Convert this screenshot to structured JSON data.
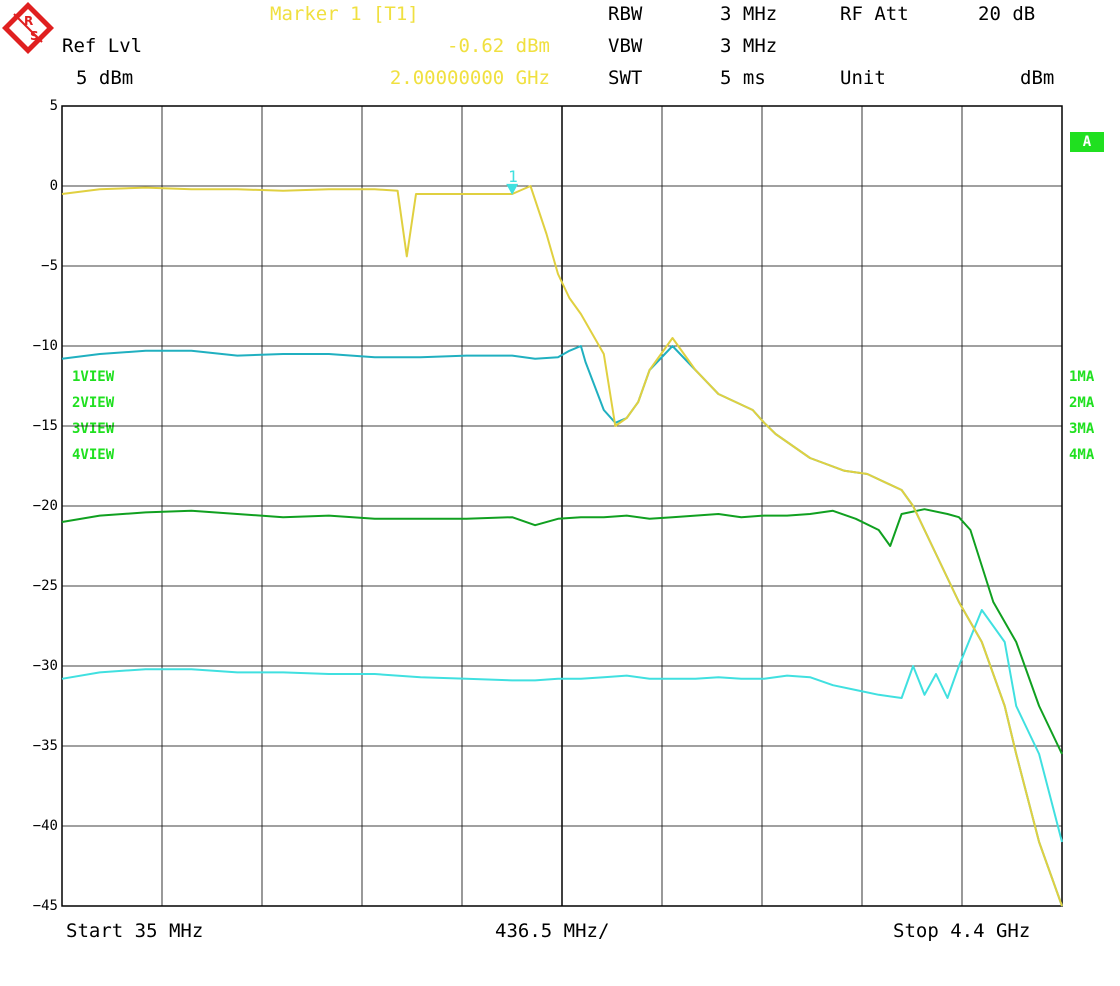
{
  "header": {
    "marker_title": "Marker 1 [T1]",
    "marker_level": "-0.62 dBm",
    "marker_freq": "2.00000000 GHz",
    "ref_lvl_label": "Ref Lvl",
    "ref_lvl_value": "5 dBm",
    "rbw_label": "RBW",
    "rbw_value": "3 MHz",
    "vbw_label": "VBW",
    "vbw_value": "3 MHz",
    "swt_label": "SWT",
    "swt_value": "5 ms",
    "rfatt_label": "RF Att",
    "rfatt_value": "20 dB",
    "unit_label": "Unit",
    "unit_value": "dBm"
  },
  "footer": {
    "start": "Start 35 MHz",
    "span": "436.5 MHz/",
    "stop": "Stop 4.4 GHz"
  },
  "side": {
    "a_box": "A",
    "views": [
      "1VIEW",
      "2VIEW",
      "3VIEW",
      "4VIEW"
    ],
    "ma": [
      "1MA",
      "2MA",
      "3MA",
      "4MA"
    ]
  },
  "colors": {
    "trace1": "#e0d040",
    "trace2": "#20b0c0",
    "trace3": "#10a020",
    "trace4": "#40e0e0",
    "marker": "#40e0e0",
    "grid": "#000000"
  },
  "chart_data": {
    "type": "line",
    "xlim": [
      35,
      4400
    ],
    "x_unit": "MHz",
    "ylim": [
      -45,
      5
    ],
    "ylabel": "",
    "xlabel": "",
    "y_ticks": [
      5,
      0,
      -5,
      -10,
      -15,
      -20,
      -25,
      -30,
      -35,
      -40,
      -45
    ],
    "y_tick_labels": [
      "5",
      "0",
      "−5",
      "−10",
      "−15",
      "−20",
      "−25",
      "−30",
      "−35",
      "−40",
      "−45"
    ],
    "grid": true,
    "marker": {
      "label": "1",
      "x": 2000,
      "y": -0.62
    },
    "series": [
      {
        "x": [
          35,
          200,
          400,
          600,
          800,
          1000,
          1200,
          1400,
          1500,
          1540,
          1580,
          1650,
          1800,
          1950,
          2000,
          2080,
          2150,
          2200,
          2250,
          2300,
          2320,
          2400,
          2450,
          2500,
          2550,
          2600,
          2700,
          2800,
          2900,
          3050,
          3100,
          3150,
          3200,
          3300,
          3450,
          3550,
          3700,
          3750,
          3850,
          3950,
          4050,
          4150,
          4200,
          4300,
          4400
        ],
        "values": [
          -0.5,
          -0.2,
          -0.1,
          -0.2,
          -0.2,
          -0.3,
          -0.2,
          -0.2,
          -0.3,
          -4.4,
          -0.5,
          -0.5,
          -0.5,
          -0.5,
          -0.5,
          0,
          -3,
          -5.5,
          -7,
          -8,
          -8.5,
          -10.5,
          -15,
          -14.5,
          -13.5,
          -11.5,
          -9.5,
          -11.5,
          -13,
          -14,
          -14.8,
          -15.5,
          -16,
          -17,
          -17.8,
          -18,
          -19,
          -20,
          -23,
          -26,
          -28.5,
          -32.5,
          -35.5,
          -41,
          -45
        ]
      },
      {
        "x": [
          35,
          200,
          400,
          600,
          800,
          1000,
          1200,
          1400,
          1600,
          1800,
          2000,
          2100,
          2200,
          2250,
          2300,
          2320,
          2400,
          2450,
          2500,
          2550,
          2600,
          2700,
          2800,
          2900,
          3050,
          3100,
          3150,
          3200,
          3300,
          3450,
          3550,
          3700,
          3750,
          3850,
          3950,
          4050,
          4150,
          4200,
          4300,
          4400
        ],
        "values": [
          -10.8,
          -10.5,
          -10.3,
          -10.3,
          -10.6,
          -10.5,
          -10.5,
          -10.7,
          -10.7,
          -10.6,
          -10.6,
          -10.8,
          -10.7,
          -10.3,
          -10,
          -11,
          -14,
          -14.8,
          -14.5,
          -13.5,
          -11.5,
          -10,
          -11.5,
          -13,
          -14,
          -14.8,
          -15.5,
          -16,
          -17,
          -17.8,
          -18,
          -19,
          -20,
          -23,
          -26,
          -28.5,
          -32.5,
          -35.5,
          -41,
          -45
        ]
      },
      {
        "x": [
          35,
          200,
          400,
          600,
          800,
          1000,
          1200,
          1400,
          1600,
          1800,
          2000,
          2100,
          2200,
          2300,
          2400,
          2500,
          2600,
          2700,
          2800,
          2900,
          3000,
          3100,
          3200,
          3300,
          3400,
          3500,
          3600,
          3650,
          3700,
          3800,
          3900,
          3950,
          4000,
          4100,
          4200,
          4300,
          4400
        ],
        "values": [
          -21,
          -20.6,
          -20.4,
          -20.3,
          -20.5,
          -20.7,
          -20.6,
          -20.8,
          -20.8,
          -20.8,
          -20.7,
          -21.2,
          -20.8,
          -20.7,
          -20.7,
          -20.6,
          -20.8,
          -20.7,
          -20.6,
          -20.5,
          -20.7,
          -20.6,
          -20.6,
          -20.5,
          -20.3,
          -20.8,
          -21.5,
          -22.5,
          -20.5,
          -20.2,
          -20.5,
          -20.7,
          -21.5,
          -26,
          -28.5,
          -32.5,
          -35.5
        ]
      },
      {
        "x": [
          35,
          200,
          400,
          600,
          800,
          1000,
          1200,
          1400,
          1600,
          1800,
          2000,
          2100,
          2200,
          2300,
          2400,
          2500,
          2600,
          2700,
          2800,
          2900,
          3000,
          3100,
          3200,
          3300,
          3400,
          3500,
          3600,
          3700,
          3750,
          3800,
          3850,
          3900,
          3950,
          4050,
          4150,
          4200,
          4300,
          4400
        ],
        "values": [
          -30.8,
          -30.4,
          -30.2,
          -30.2,
          -30.4,
          -30.4,
          -30.5,
          -30.5,
          -30.7,
          -30.8,
          -30.9,
          -30.9,
          -30.8,
          -30.8,
          -30.7,
          -30.6,
          -30.8,
          -30.8,
          -30.8,
          -30.7,
          -30.8,
          -30.8,
          -30.6,
          -30.7,
          -31.2,
          -31.5,
          -31.8,
          -32,
          -30,
          -31.8,
          -30.5,
          -32,
          -30,
          -26.5,
          -28.5,
          -32.5,
          -35.5,
          -41
        ]
      }
    ]
  }
}
